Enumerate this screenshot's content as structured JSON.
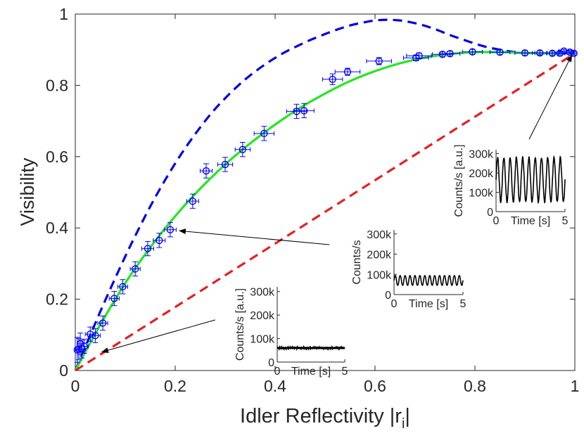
{
  "chart_data": {
    "type": "scatter",
    "title": "",
    "xlabel": "Idler Reflectivity |r",
    "xlabel_sub": "i",
    "xlabel_end": "|",
    "ylabel": "Visibility",
    "xlim": [
      0,
      1
    ],
    "ylim": [
      0,
      1
    ],
    "x_ticks": [
      "0",
      "0.2",
      "0.4",
      "0.6",
      "0.8",
      "1"
    ],
    "y_ticks": [
      "0",
      "0.2",
      "0.4",
      "0.6",
      "0.8",
      "1"
    ],
    "grid": false,
    "series": [
      {
        "name": "measured",
        "kind": "errorbar",
        "color": "#0000ff",
        "points": [
          {
            "x": 0.004,
            "y": 0.058,
            "xerr": 0.004,
            "yerr": 0.035
          },
          {
            "x": 0.007,
            "y": 0.06,
            "xerr": 0.006,
            "yerr": 0.03
          },
          {
            "x": 0.01,
            "y": 0.075,
            "xerr": 0.006,
            "yerr": 0.03
          },
          {
            "x": 0.013,
            "y": 0.06,
            "xerr": 0.007,
            "yerr": 0.025
          },
          {
            "x": 0.018,
            "y": 0.068,
            "xerr": 0.008,
            "yerr": 0.02
          },
          {
            "x": 0.03,
            "y": 0.102,
            "xerr": 0.01,
            "yerr": 0.02
          },
          {
            "x": 0.04,
            "y": 0.098,
            "xerr": 0.01,
            "yerr": 0.02
          },
          {
            "x": 0.055,
            "y": 0.133,
            "xerr": 0.01,
            "yerr": 0.02
          },
          {
            "x": 0.078,
            "y": 0.202,
            "xerr": 0.01,
            "yerr": 0.02
          },
          {
            "x": 0.095,
            "y": 0.235,
            "xerr": 0.01,
            "yerr": 0.02
          },
          {
            "x": 0.12,
            "y": 0.285,
            "xerr": 0.01,
            "yerr": 0.02
          },
          {
            "x": 0.145,
            "y": 0.342,
            "xerr": 0.012,
            "yerr": 0.02
          },
          {
            "x": 0.168,
            "y": 0.365,
            "xerr": 0.012,
            "yerr": 0.02
          },
          {
            "x": 0.19,
            "y": 0.395,
            "xerr": 0.012,
            "yerr": 0.02
          },
          {
            "x": 0.235,
            "y": 0.475,
            "xerr": 0.012,
            "yerr": 0.02
          },
          {
            "x": 0.262,
            "y": 0.56,
            "xerr": 0.012,
            "yerr": 0.02
          },
          {
            "x": 0.3,
            "y": 0.578,
            "xerr": 0.015,
            "yerr": 0.02
          },
          {
            "x": 0.335,
            "y": 0.62,
            "xerr": 0.015,
            "yerr": 0.02
          },
          {
            "x": 0.378,
            "y": 0.665,
            "xerr": 0.02,
            "yerr": 0.02
          },
          {
            "x": 0.443,
            "y": 0.727,
            "xerr": 0.02,
            "yerr": 0.02
          },
          {
            "x": 0.458,
            "y": 0.729,
            "xerr": 0.02,
            "yerr": 0.02
          },
          {
            "x": 0.515,
            "y": 0.817,
            "xerr": 0.02,
            "yerr": 0.015
          },
          {
            "x": 0.545,
            "y": 0.838,
            "xerr": 0.025,
            "yerr": 0.01
          },
          {
            "x": 0.608,
            "y": 0.868,
            "xerr": 0.025,
            "yerr": 0.01
          },
          {
            "x": 0.682,
            "y": 0.877,
            "xerr": 0.025,
            "yerr": 0.008
          },
          {
            "x": 0.688,
            "y": 0.883,
            "xerr": 0.025,
            "yerr": 0.008
          },
          {
            "x": 0.735,
            "y": 0.887,
            "xerr": 0.02,
            "yerr": 0.007
          },
          {
            "x": 0.75,
            "y": 0.889,
            "xerr": 0.02,
            "yerr": 0.007
          },
          {
            "x": 0.795,
            "y": 0.894,
            "xerr": 0.02,
            "yerr": 0.007
          },
          {
            "x": 0.85,
            "y": 0.893,
            "xerr": 0.02,
            "yerr": 0.007
          },
          {
            "x": 0.9,
            "y": 0.891,
            "xerr": 0.02,
            "yerr": 0.007
          },
          {
            "x": 0.93,
            "y": 0.891,
            "xerr": 0.015,
            "yerr": 0.006
          },
          {
            "x": 0.955,
            "y": 0.89,
            "xerr": 0.012,
            "yerr": 0.006
          },
          {
            "x": 0.97,
            "y": 0.89,
            "xerr": 0.01,
            "yerr": 0.005
          },
          {
            "x": 0.978,
            "y": 0.896,
            "xerr": 0.01,
            "yerr": 0.005
          },
          {
            "x": 0.99,
            "y": 0.893,
            "xerr": 0.008,
            "yerr": 0.005
          },
          {
            "x": 0.998,
            "y": 0.89,
            "xerr": 0.006,
            "yerr": 0.005
          }
        ]
      },
      {
        "name": "theory-dashed",
        "kind": "line",
        "dash": true,
        "color": "#0000e6",
        "x": [
          0,
          0.025,
          0.05,
          0.075,
          0.1,
          0.125,
          0.15,
          0.175,
          0.2,
          0.225,
          0.25,
          0.275,
          0.3,
          0.325,
          0.35,
          0.375,
          0.4,
          0.425,
          0.45,
          0.475,
          0.5,
          0.525,
          0.55,
          0.575,
          0.6,
          0.625,
          0.65,
          0.675,
          0.7,
          0.725,
          0.75,
          0.775,
          0.8,
          0.825,
          0.85,
          0.875,
          0.9,
          0.925,
          0.95,
          0.975,
          1
        ],
        "y": [
          0,
          0.083,
          0.165,
          0.244,
          0.32,
          0.392,
          0.46,
          0.523,
          0.581,
          0.634,
          0.682,
          0.726,
          0.764,
          0.798,
          0.828,
          0.854,
          0.877,
          0.897,
          0.914,
          0.93,
          0.944,
          0.957,
          0.968,
          0.976,
          0.982,
          0.984,
          0.982,
          0.976,
          0.967,
          0.955,
          0.941,
          0.929,
          0.917,
          0.907,
          0.9,
          0.894,
          0.891,
          0.89,
          0.89,
          0.89,
          0.89
        ]
      },
      {
        "name": "fit",
        "kind": "line",
        "dash": false,
        "color": "#22e622",
        "x": [
          0,
          0.05,
          0.1,
          0.15,
          0.2,
          0.25,
          0.3,
          0.35,
          0.4,
          0.45,
          0.5,
          0.55,
          0.6,
          0.65,
          0.7,
          0.75,
          0.8,
          0.85,
          0.9,
          0.95,
          1
        ],
        "y": [
          0,
          0.128,
          0.245,
          0.345,
          0.433,
          0.51,
          0.578,
          0.637,
          0.69,
          0.737,
          0.777,
          0.812,
          0.84,
          0.862,
          0.878,
          0.888,
          0.893,
          0.893,
          0.891,
          0.89,
          0.89
        ]
      },
      {
        "name": "linear-dashed",
        "kind": "line",
        "dash": true,
        "color": "#e62020",
        "x": [
          0,
          1
        ],
        "y": [
          0,
          0.89
        ]
      }
    ],
    "insets": [
      {
        "name": "inset-low",
        "ylabel": "Counts/s [a.u.]",
        "xlabel": "Time [s]",
        "x_ticks": [
          "0",
          "5"
        ],
        "y_ticks": [
          "0",
          "100k",
          "200k",
          "300k"
        ],
        "ylim": [
          0,
          320000
        ],
        "xlim": [
          0,
          5
        ],
        "trace_mean": 60000,
        "trace_amp": 5000,
        "oscillations": 0,
        "points_to": {
          "x": 0.045,
          "y": 0.052
        }
      },
      {
        "name": "inset-mid",
        "ylabel": "Counts/s",
        "xlabel": "Time [s]",
        "x_ticks": [
          "0",
          "5"
        ],
        "y_ticks": [
          "0",
          "100k",
          "200k",
          "300k"
        ],
        "ylim": [
          0,
          320000
        ],
        "xlim": [
          0,
          5
        ],
        "trace_mean": 70000,
        "trace_amp": 25000,
        "oscillations": 14,
        "points_to": {
          "x": 0.2,
          "y": 0.392
        }
      },
      {
        "name": "inset-high",
        "ylabel": "Counts/s [a.u.]",
        "xlabel": "Time [s]",
        "x_ticks": [
          "0",
          "5"
        ],
        "y_ticks": [
          "0",
          "100k",
          "200k",
          "300k"
        ],
        "ylim": [
          0,
          320000
        ],
        "xlim": [
          0,
          5
        ],
        "trace_mean": 165000,
        "trace_amp": 115000,
        "oscillations": 11,
        "points_to": {
          "x": 0.998,
          "y": 0.89
        }
      }
    ]
  }
}
